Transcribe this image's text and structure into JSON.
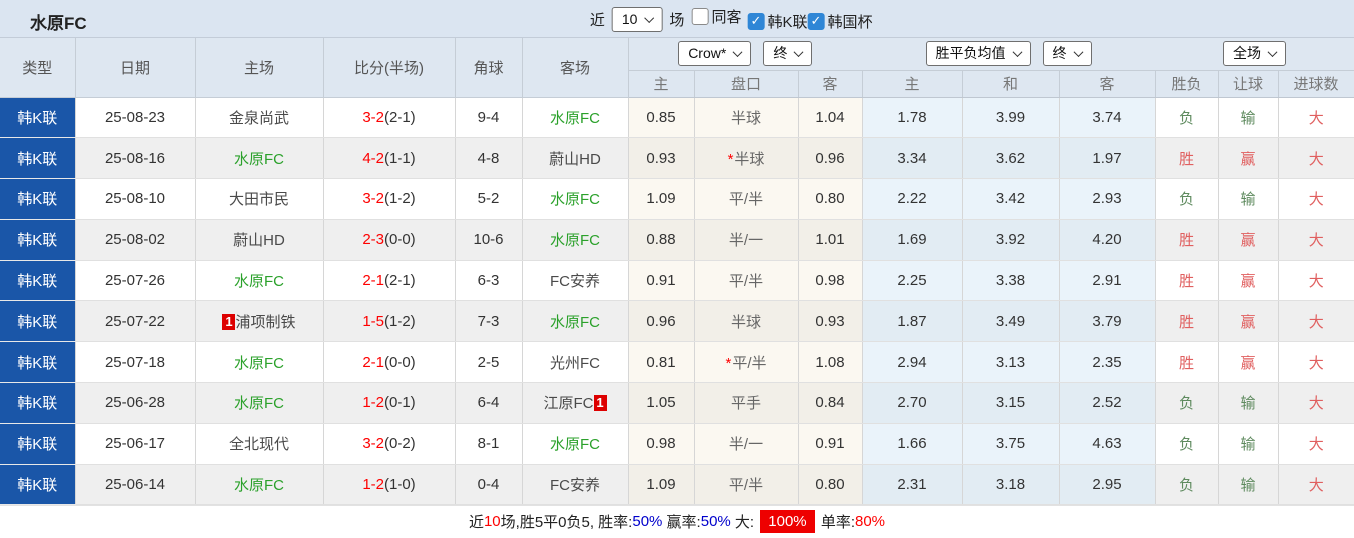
{
  "title": "水原FC",
  "topbar": {
    "near_label": "近",
    "recent_count": "10",
    "unit_label": "场",
    "checkboxes": [
      {
        "label": "同客",
        "checked": false
      },
      {
        "label": "韩K联",
        "checked": true
      },
      {
        "label": "韩国杯",
        "checked": true
      }
    ]
  },
  "header": {
    "static_cols": [
      "类型",
      "日期",
      "主场",
      "比分(半场)",
      "角球",
      "客场"
    ],
    "selects": {
      "odds_source": "Crow*",
      "odds_state": "终",
      "avg_odds": "胜平负均值",
      "avg_state": "终",
      "scope": "全场"
    },
    "sub_cols": [
      "主",
      "盘口",
      "客",
      "主",
      "和",
      "客",
      "胜负",
      "让球",
      "进球数"
    ]
  },
  "rows": [
    {
      "league": "韩K联",
      "date": "25-08-23",
      "home": {
        "name": "金泉尚武",
        "color": "dark",
        "badge": ""
      },
      "score": "3-2",
      "half": "(2-1)",
      "corner": "9-4",
      "away": {
        "name": "水原FC",
        "color": "green",
        "badge": ""
      },
      "asian": {
        "home": "0.85",
        "line": "半球",
        "star": false,
        "away": "1.04"
      },
      "euro": {
        "home": "1.78",
        "draw": "3.99",
        "away": "3.74"
      },
      "results": {
        "outcome": {
          "text": "负",
          "color": "green"
        },
        "handicap": {
          "text": "输",
          "color": "green"
        },
        "goals": {
          "text": "大",
          "color": "red"
        }
      }
    },
    {
      "league": "韩K联",
      "date": "25-08-16",
      "home": {
        "name": "水原FC",
        "color": "green",
        "badge": ""
      },
      "score": "4-2",
      "half": "(1-1)",
      "corner": "4-8",
      "away": {
        "name": "蔚山HD",
        "color": "dark",
        "badge": ""
      },
      "asian": {
        "home": "0.93",
        "line": "半球",
        "star": true,
        "away": "0.96"
      },
      "euro": {
        "home": "3.34",
        "draw": "3.62",
        "away": "1.97"
      },
      "results": {
        "outcome": {
          "text": "胜",
          "color": "red"
        },
        "handicap": {
          "text": "赢",
          "color": "red"
        },
        "goals": {
          "text": "大",
          "color": "red"
        }
      }
    },
    {
      "league": "韩K联",
      "date": "25-08-10",
      "home": {
        "name": "大田市民",
        "color": "dark",
        "badge": ""
      },
      "score": "3-2",
      "half": "(1-2)",
      "corner": "5-2",
      "away": {
        "name": "水原FC",
        "color": "green",
        "badge": ""
      },
      "asian": {
        "home": "1.09",
        "line": "平/半",
        "star": false,
        "away": "0.80"
      },
      "euro": {
        "home": "2.22",
        "draw": "3.42",
        "away": "2.93"
      },
      "results": {
        "outcome": {
          "text": "负",
          "color": "green"
        },
        "handicap": {
          "text": "输",
          "color": "green"
        },
        "goals": {
          "text": "大",
          "color": "red"
        }
      }
    },
    {
      "league": "韩K联",
      "date": "25-08-02",
      "home": {
        "name": "蔚山HD",
        "color": "dark",
        "badge": ""
      },
      "score": "2-3",
      "half": "(0-0)",
      "corner": "10-6",
      "away": {
        "name": "水原FC",
        "color": "green",
        "badge": ""
      },
      "asian": {
        "home": "0.88",
        "line": "半/一",
        "star": false,
        "away": "1.01"
      },
      "euro": {
        "home": "1.69",
        "draw": "3.92",
        "away": "4.20"
      },
      "results": {
        "outcome": {
          "text": "胜",
          "color": "red"
        },
        "handicap": {
          "text": "赢",
          "color": "red"
        },
        "goals": {
          "text": "大",
          "color": "red"
        }
      }
    },
    {
      "league": "韩K联",
      "date": "25-07-26",
      "home": {
        "name": "水原FC",
        "color": "green",
        "badge": ""
      },
      "score": "2-1",
      "half": "(2-1)",
      "corner": "6-3",
      "away": {
        "name": "FC安养",
        "color": "dark",
        "badge": ""
      },
      "asian": {
        "home": "0.91",
        "line": "平/半",
        "star": false,
        "away": "0.98"
      },
      "euro": {
        "home": "2.25",
        "draw": "3.38",
        "away": "2.91"
      },
      "results": {
        "outcome": {
          "text": "胜",
          "color": "red"
        },
        "handicap": {
          "text": "赢",
          "color": "red"
        },
        "goals": {
          "text": "大",
          "color": "red"
        }
      }
    },
    {
      "league": "韩K联",
      "date": "25-07-22",
      "home": {
        "name": "浦项制铁",
        "color": "dark",
        "badge": "1",
        "badge_pos": "before"
      },
      "score": "1-5",
      "half": "(1-2)",
      "corner": "7-3",
      "away": {
        "name": "水原FC",
        "color": "green",
        "badge": ""
      },
      "asian": {
        "home": "0.96",
        "line": "半球",
        "star": false,
        "away": "0.93"
      },
      "euro": {
        "home": "1.87",
        "draw": "3.49",
        "away": "3.79"
      },
      "results": {
        "outcome": {
          "text": "胜",
          "color": "red"
        },
        "handicap": {
          "text": "赢",
          "color": "red"
        },
        "goals": {
          "text": "大",
          "color": "red"
        }
      }
    },
    {
      "league": "韩K联",
      "date": "25-07-18",
      "home": {
        "name": "水原FC",
        "color": "green",
        "badge": ""
      },
      "score": "2-1",
      "half": "(0-0)",
      "corner": "2-5",
      "away": {
        "name": "光州FC",
        "color": "dark",
        "badge": ""
      },
      "asian": {
        "home": "0.81",
        "line": "平/半",
        "star": true,
        "away": "1.08"
      },
      "euro": {
        "home": "2.94",
        "draw": "3.13",
        "away": "2.35"
      },
      "results": {
        "outcome": {
          "text": "胜",
          "color": "red"
        },
        "handicap": {
          "text": "赢",
          "color": "red"
        },
        "goals": {
          "text": "大",
          "color": "red"
        }
      }
    },
    {
      "league": "韩K联",
      "date": "25-06-28",
      "home": {
        "name": "水原FC",
        "color": "green",
        "badge": ""
      },
      "score": "1-2",
      "half": "(0-1)",
      "corner": "6-4",
      "away": {
        "name": "江原FC",
        "color": "dark",
        "badge": "1",
        "badge_pos": "after"
      },
      "asian": {
        "home": "1.05",
        "line": "平手",
        "star": false,
        "away": "0.84"
      },
      "euro": {
        "home": "2.70",
        "draw": "3.15",
        "away": "2.52"
      },
      "results": {
        "outcome": {
          "text": "负",
          "color": "green"
        },
        "handicap": {
          "text": "输",
          "color": "green"
        },
        "goals": {
          "text": "大",
          "color": "red"
        }
      }
    },
    {
      "league": "韩K联",
      "date": "25-06-17",
      "home": {
        "name": "全北现代",
        "color": "dark",
        "badge": ""
      },
      "score": "3-2",
      "half": "(0-2)",
      "corner": "8-1",
      "away": {
        "name": "水原FC",
        "color": "green",
        "badge": ""
      },
      "asian": {
        "home": "0.98",
        "line": "半/一",
        "star": false,
        "away": "0.91"
      },
      "euro": {
        "home": "1.66",
        "draw": "3.75",
        "away": "4.63"
      },
      "results": {
        "outcome": {
          "text": "负",
          "color": "green"
        },
        "handicap": {
          "text": "输",
          "color": "green"
        },
        "goals": {
          "text": "大",
          "color": "red"
        }
      }
    },
    {
      "league": "韩K联",
      "date": "25-06-14",
      "home": {
        "name": "水原FC",
        "color": "green",
        "badge": ""
      },
      "score": "1-2",
      "half": "(1-0)",
      "corner": "0-4",
      "away": {
        "name": "FC安养",
        "color": "dark",
        "badge": ""
      },
      "asian": {
        "home": "1.09",
        "line": "平/半",
        "star": false,
        "away": "0.80"
      },
      "euro": {
        "home": "2.31",
        "draw": "3.18",
        "away": "2.95"
      },
      "results": {
        "outcome": {
          "text": "负",
          "color": "green"
        },
        "handicap": {
          "text": "输",
          "color": "green"
        },
        "goals": {
          "text": "大",
          "color": "red"
        }
      }
    }
  ],
  "footer": {
    "segments": [
      {
        "text": "近",
        "style": "dark"
      },
      {
        "text": "10",
        "style": "red"
      },
      {
        "text": "场,胜5平0负5, 胜率:",
        "style": "dark"
      },
      {
        "text": "50%",
        "style": "blue"
      },
      {
        "text": " 赢率:",
        "style": "dark"
      },
      {
        "text": "50%",
        "style": "blue"
      },
      {
        "text": " 大: ",
        "style": "dark"
      },
      {
        "text": "100%",
        "style": "redbadge"
      },
      {
        "text": " 单率:",
        "style": "dark"
      },
      {
        "text": "80%",
        "style": "red"
      }
    ]
  },
  "colors": {
    "league_cell": "#1a56a8",
    "score_red": "#fe0000",
    "team_green": "#2ba12b",
    "result_red": "#e05f5f",
    "result_green": "#5e8a5e",
    "checked_blue": "#2f86d6"
  }
}
